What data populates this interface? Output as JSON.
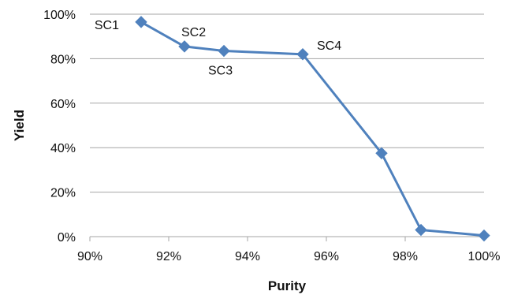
{
  "chart_data": {
    "type": "line",
    "title": "",
    "xlabel": "Purity",
    "ylabel": "Yield",
    "xlim": [
      90,
      100
    ],
    "ylim": [
      0,
      100
    ],
    "x_ticks": [
      "90%",
      "92%",
      "94%",
      "96%",
      "98%",
      "100%"
    ],
    "y_ticks": [
      "0%",
      "20%",
      "40%",
      "60%",
      "80%",
      "100%"
    ],
    "grid": "horizontal",
    "legend": "none",
    "series": [
      {
        "color": "#4f81bd",
        "marker": "diamond",
        "x": [
          91.3,
          92.4,
          93.4,
          95.4,
          97.4,
          98.4,
          100.0
        ],
        "y": [
          96.5,
          85.5,
          83.5,
          82.0,
          37.5,
          3.0,
          0.5
        ],
        "labels": [
          "SC1",
          "SC2",
          "SC3",
          "SC4",
          "",
          "",
          ""
        ]
      }
    ]
  }
}
